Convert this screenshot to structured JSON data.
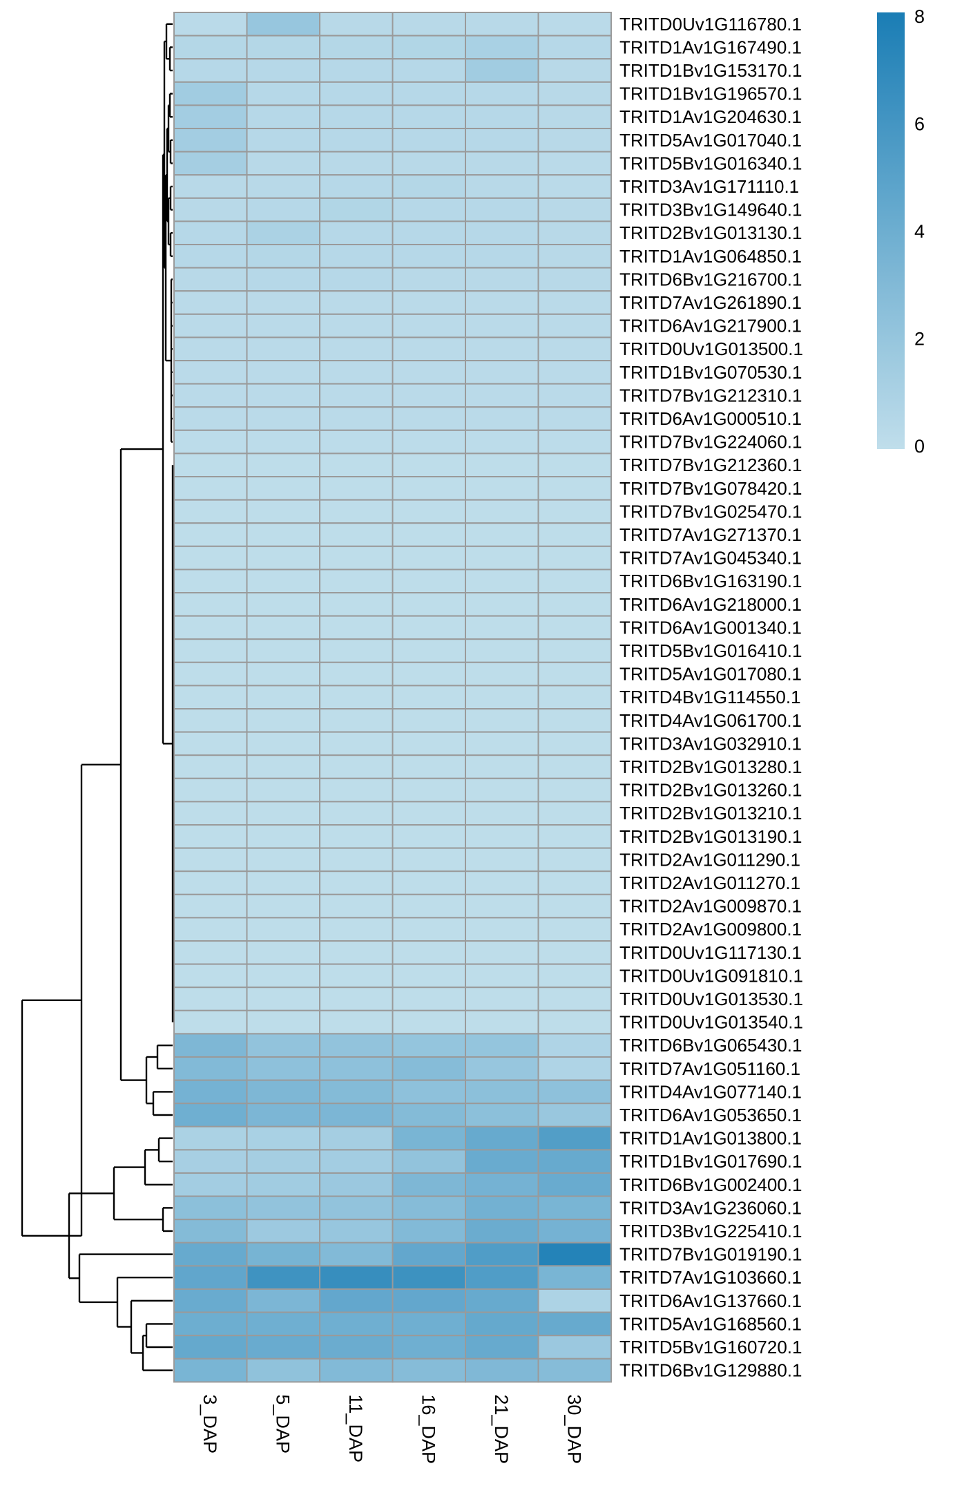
{
  "chart_data": {
    "type": "heatmap",
    "columns": [
      "3_DAP",
      "5_DAP",
      "11_DAP",
      "16_DAP",
      "21_DAP",
      "30_DAP"
    ],
    "rows": [
      "TRITD0Uv1G116780.1",
      "TRITD1Av1G167490.1",
      "TRITD1Bv1G153170.1",
      "TRITD1Bv1G196570.1",
      "TRITD1Av1G204630.1",
      "TRITD5Av1G017040.1",
      "TRITD5Bv1G016340.1",
      "TRITD3Av1G171110.1",
      "TRITD3Bv1G149640.1",
      "TRITD2Bv1G013130.1",
      "TRITD1Av1G064850.1",
      "TRITD6Bv1G216700.1",
      "TRITD7Av1G261890.1",
      "TRITD6Av1G217900.1",
      "TRITD0Uv1G013500.1",
      "TRITD1Bv1G070530.1",
      "TRITD7Bv1G212310.1",
      "TRITD6Av1G000510.1",
      "TRITD7Bv1G224060.1",
      "TRITD7Bv1G212360.1",
      "TRITD7Bv1G078420.1",
      "TRITD7Bv1G025470.1",
      "TRITD7Av1G271370.1",
      "TRITD7Av1G045340.1",
      "TRITD6Bv1G163190.1",
      "TRITD6Av1G218000.1",
      "TRITD6Av1G001340.1",
      "TRITD5Bv1G016410.1",
      "TRITD5Av1G017080.1",
      "TRITD4Bv1G114550.1",
      "TRITD4Av1G061700.1",
      "TRITD3Av1G032910.1",
      "TRITD2Bv1G013280.1",
      "TRITD2Bv1G013260.1",
      "TRITD2Bv1G013210.1",
      "TRITD2Bv1G013190.1",
      "TRITD2Av1G011290.1",
      "TRITD2Av1G011270.1",
      "TRITD2Av1G009870.1",
      "TRITD2Av1G009800.1",
      "TRITD0Uv1G117130.1",
      "TRITD0Uv1G091810.1",
      "TRITD0Uv1G013530.1",
      "TRITD0Uv1G013540.1",
      "TRITD6Bv1G065430.1",
      "TRITD7Av1G051160.1",
      "TRITD4Av1G077140.1",
      "TRITD6Av1G053650.1",
      "TRITD1Av1G013800.1",
      "TRITD1Bv1G017690.1",
      "TRITD6Bv1G002400.1",
      "TRITD3Av1G236060.1",
      "TRITD3Bv1G225410.1",
      "TRITD7Bv1G019190.1",
      "TRITD7Av1G103660.1",
      "TRITD6Av1G137660.1",
      "TRITD5Av1G168560.1",
      "TRITD5Bv1G160720.1",
      "TRITD6Bv1G129880.1"
    ],
    "values": [
      [
        0.3,
        2.0,
        0.4,
        0.4,
        0.4,
        0.3
      ],
      [
        0.6,
        0.6,
        0.6,
        0.7,
        1.1,
        0.5
      ],
      [
        0.5,
        0.5,
        0.5,
        0.5,
        1.5,
        0.4
      ],
      [
        1.5,
        0.5,
        0.5,
        0.5,
        0.5,
        0.4
      ],
      [
        1.4,
        0.5,
        0.5,
        0.5,
        0.5,
        0.4
      ],
      [
        1.4,
        0.5,
        0.5,
        0.5,
        0.5,
        0.4
      ],
      [
        1.3,
        0.4,
        0.4,
        0.4,
        0.4,
        0.3
      ],
      [
        0.4,
        0.4,
        0.5,
        0.6,
        0.4,
        0.3
      ],
      [
        0.4,
        0.5,
        0.7,
        0.5,
        0.5,
        0.4
      ],
      [
        0.5,
        1.0,
        0.5,
        0.5,
        0.5,
        0.4
      ],
      [
        0.5,
        0.6,
        0.5,
        0.5,
        0.5,
        0.4
      ],
      [
        0.4,
        0.5,
        0.5,
        0.4,
        0.4,
        0.4
      ],
      [
        0.3,
        0.3,
        0.3,
        0.3,
        0.3,
        0.3
      ],
      [
        0.3,
        0.3,
        0.3,
        0.3,
        0.3,
        0.3
      ],
      [
        0.3,
        0.3,
        0.3,
        0.3,
        0.3,
        0.3
      ],
      [
        0.3,
        0.3,
        0.3,
        0.3,
        0.3,
        0.3
      ],
      [
        0.3,
        0.3,
        0.3,
        0.3,
        0.3,
        0.3
      ],
      [
        0.3,
        0.3,
        0.3,
        0.3,
        0.3,
        0.3
      ],
      [
        0.2,
        0.2,
        0.2,
        0.2,
        0.2,
        0.2
      ],
      [
        0.1,
        0.1,
        0.1,
        0.1,
        0.1,
        0.1
      ],
      [
        0.1,
        0.1,
        0.1,
        0.1,
        0.1,
        0.1
      ],
      [
        0.1,
        0.1,
        0.1,
        0.1,
        0.1,
        0.1
      ],
      [
        0.1,
        0.1,
        0.1,
        0.1,
        0.1,
        0.1
      ],
      [
        0.1,
        0.1,
        0.1,
        0.1,
        0.1,
        0.1
      ],
      [
        0.1,
        0.1,
        0.1,
        0.1,
        0.1,
        0.1
      ],
      [
        0.1,
        0.1,
        0.1,
        0.1,
        0.1,
        0.1
      ],
      [
        0.1,
        0.1,
        0.1,
        0.1,
        0.1,
        0.1
      ],
      [
        0.1,
        0.1,
        0.1,
        0.1,
        0.1,
        0.1
      ],
      [
        0.1,
        0.1,
        0.1,
        0.1,
        0.1,
        0.1
      ],
      [
        0.1,
        0.1,
        0.1,
        0.1,
        0.1,
        0.1
      ],
      [
        0.1,
        0.1,
        0.1,
        0.1,
        0.1,
        0.1
      ],
      [
        0.1,
        0.1,
        0.1,
        0.1,
        0.1,
        0.1
      ],
      [
        0.1,
        0.1,
        0.1,
        0.1,
        0.1,
        0.1
      ],
      [
        0.1,
        0.1,
        0.1,
        0.1,
        0.1,
        0.1
      ],
      [
        0.1,
        0.1,
        0.1,
        0.1,
        0.1,
        0.1
      ],
      [
        0.1,
        0.1,
        0.1,
        0.1,
        0.1,
        0.1
      ],
      [
        0.1,
        0.1,
        0.1,
        0.1,
        0.1,
        0.1
      ],
      [
        0.1,
        0.1,
        0.1,
        0.1,
        0.1,
        0.1
      ],
      [
        0.1,
        0.1,
        0.1,
        0.1,
        0.1,
        0.1
      ],
      [
        0.1,
        0.1,
        0.1,
        0.1,
        0.1,
        0.1
      ],
      [
        0.1,
        0.1,
        0.1,
        0.1,
        0.1,
        0.1
      ],
      [
        0.1,
        0.1,
        0.1,
        0.1,
        0.1,
        0.1
      ],
      [
        0.1,
        0.1,
        0.1,
        0.1,
        0.1,
        0.1
      ],
      [
        0.1,
        0.1,
        0.1,
        0.1,
        0.1,
        0.1
      ],
      [
        3.2,
        2.2,
        2.2,
        2.1,
        2.1,
        0.8
      ],
      [
        3.0,
        2.4,
        2.4,
        2.8,
        2.0,
        0.8
      ],
      [
        3.6,
        3.2,
        2.9,
        2.4,
        2.5,
        2.4
      ],
      [
        3.9,
        3.3,
        3.3,
        2.9,
        2.5,
        1.9
      ],
      [
        1.0,
        1.1,
        1.3,
        3.4,
        4.3,
        5.3
      ],
      [
        1.2,
        1.3,
        1.4,
        2.2,
        4.2,
        4.3
      ],
      [
        1.4,
        1.5,
        1.8,
        3.2,
        3.6,
        4.2
      ],
      [
        2.5,
        2.2,
        2.2,
        2.8,
        3.7,
        3.4
      ],
      [
        2.9,
        1.7,
        2.0,
        3.0,
        4.1,
        3.6
      ],
      [
        4.3,
        3.5,
        3.0,
        4.5,
        5.4,
        7.5
      ],
      [
        4.6,
        6.2,
        6.6,
        6.3,
        5.4,
        3.4
      ],
      [
        4.2,
        3.3,
        4.5,
        4.5,
        4.3,
        0.9
      ],
      [
        4.0,
        3.9,
        3.9,
        3.9,
        4.4,
        4.3
      ],
      [
        4.4,
        4.2,
        4.1,
        3.9,
        4.3,
        1.8
      ],
      [
        3.4,
        2.3,
        3.0,
        2.8,
        3.1,
        2.8
      ]
    ],
    "color_scale": {
      "min": 0,
      "max": 8,
      "low_color": "#C0DEEB",
      "high_color": "#1A7DB5"
    },
    "legend": {
      "ticks": [
        "0",
        "2",
        "4",
        "6",
        "8"
      ],
      "placement": "top-right"
    },
    "dendrogram": "rows"
  }
}
